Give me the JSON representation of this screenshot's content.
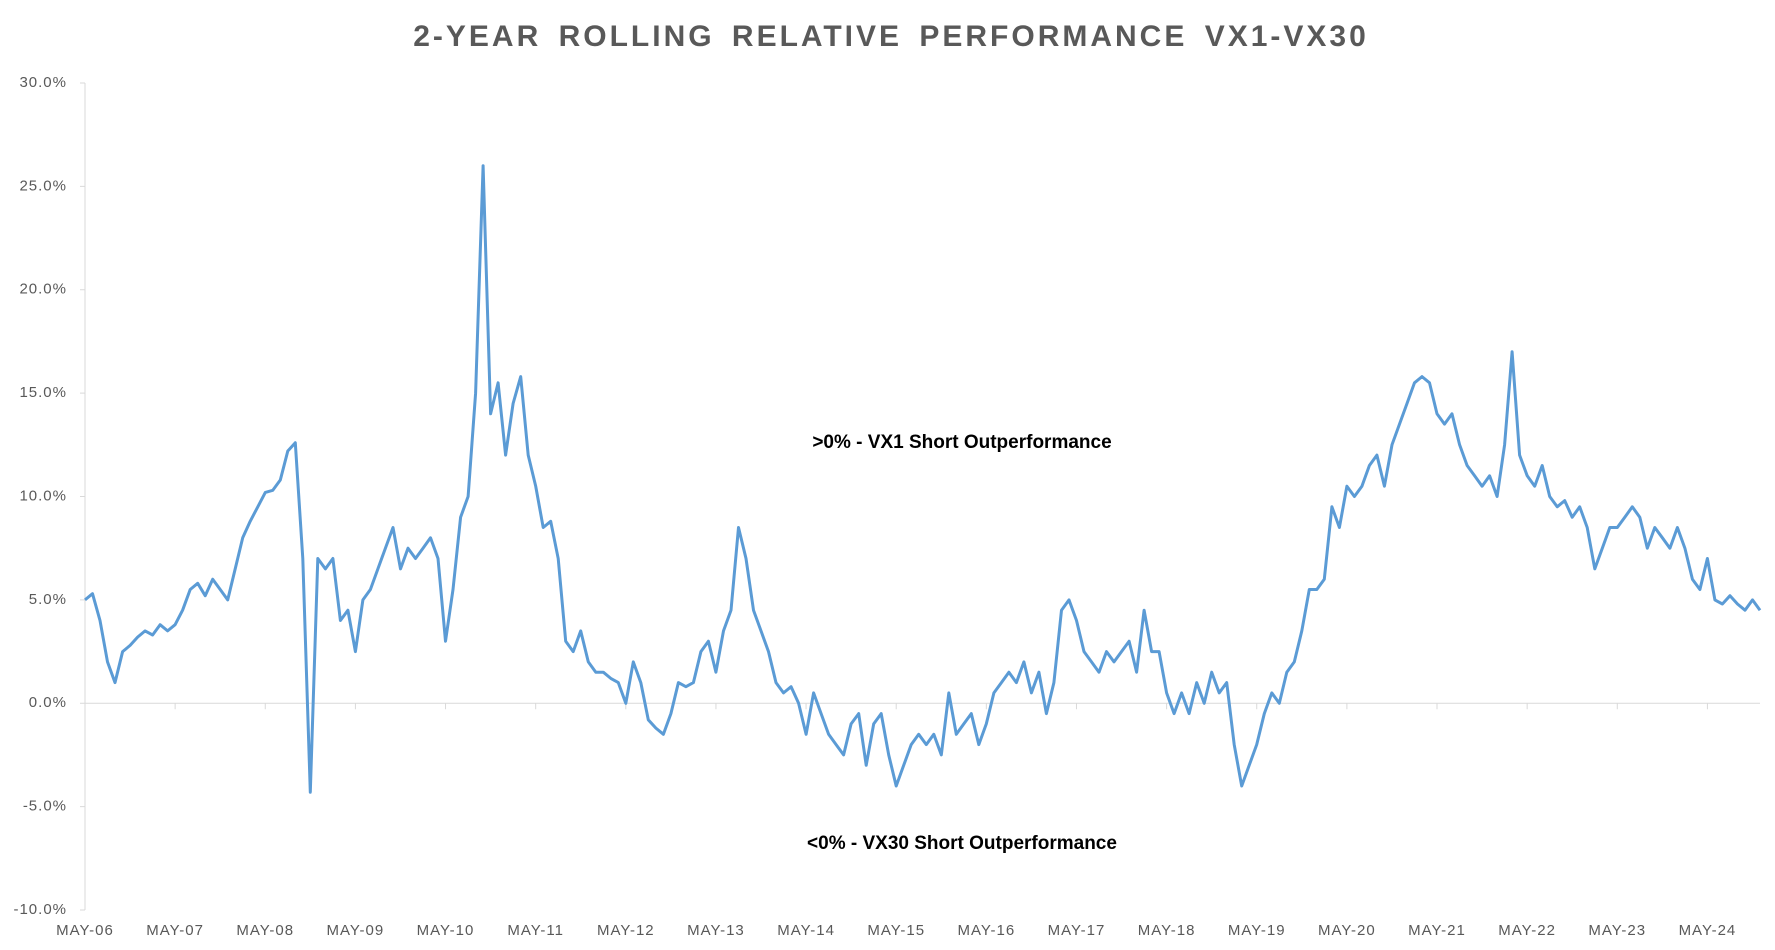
{
  "chart_data": {
    "type": "line",
    "title": "2-YEAR ROLLING RELATIVE PERFORMANCE VX1-VX30",
    "annotations": [
      ">0% - VX1 Short Outperformance",
      "<0% - VX30 Short Outperformance"
    ],
    "color": "#5b9bd5",
    "x": [
      "2006-05",
      "2006-06",
      "2006-07",
      "2006-08",
      "2006-09",
      "2006-10",
      "2006-11",
      "2006-12",
      "2007-01",
      "2007-02",
      "2007-03",
      "2007-04",
      "2007-05",
      "2007-06",
      "2007-07",
      "2007-08",
      "2007-09",
      "2007-10",
      "2007-11",
      "2007-12",
      "2008-01",
      "2008-02",
      "2008-03",
      "2008-04",
      "2008-05",
      "2008-06",
      "2008-07",
      "2008-08",
      "2008-09",
      "2008-10",
      "2008-11",
      "2008-12",
      "2009-01",
      "2009-02",
      "2009-03",
      "2009-04",
      "2009-05",
      "2009-06",
      "2009-07",
      "2009-08",
      "2009-09",
      "2009-10",
      "2009-11",
      "2009-12",
      "2010-01",
      "2010-02",
      "2010-03",
      "2010-04",
      "2010-05",
      "2010-06",
      "2010-07",
      "2010-08",
      "2010-09",
      "2010-10",
      "2010-11",
      "2010-12",
      "2011-01",
      "2011-02",
      "2011-03",
      "2011-04",
      "2011-05",
      "2011-06",
      "2011-07",
      "2011-08",
      "2011-09",
      "2011-10",
      "2011-11",
      "2011-12",
      "2012-01",
      "2012-02",
      "2012-03",
      "2012-04",
      "2012-05",
      "2012-06",
      "2012-07",
      "2012-08",
      "2012-09",
      "2012-10",
      "2012-11",
      "2012-12",
      "2013-01",
      "2013-02",
      "2013-03",
      "2013-04",
      "2013-05",
      "2013-06",
      "2013-07",
      "2013-08",
      "2013-09",
      "2013-10",
      "2013-11",
      "2013-12",
      "2014-01",
      "2014-02",
      "2014-03",
      "2014-04",
      "2014-05",
      "2014-06",
      "2014-07",
      "2014-08",
      "2014-09",
      "2014-10",
      "2014-11",
      "2014-12",
      "2015-01",
      "2015-02",
      "2015-03",
      "2015-04",
      "2015-05",
      "2015-06",
      "2015-07",
      "2015-08",
      "2015-09",
      "2015-10",
      "2015-11",
      "2015-12",
      "2016-01",
      "2016-02",
      "2016-03",
      "2016-04",
      "2016-05",
      "2016-06",
      "2016-07",
      "2016-08",
      "2016-09",
      "2016-10",
      "2016-11",
      "2016-12",
      "2017-01",
      "2017-02",
      "2017-03",
      "2017-04",
      "2017-05",
      "2017-06",
      "2017-07",
      "2017-08",
      "2017-09",
      "2017-10",
      "2017-11",
      "2017-12",
      "2018-01",
      "2018-02",
      "2018-03",
      "2018-04",
      "2018-05",
      "2018-06",
      "2018-07",
      "2018-08",
      "2018-09",
      "2018-10",
      "2018-11",
      "2018-12",
      "2019-01",
      "2019-02",
      "2019-03",
      "2019-04",
      "2019-05",
      "2019-06",
      "2019-07",
      "2019-08",
      "2019-09",
      "2019-10",
      "2019-11",
      "2019-12",
      "2020-01",
      "2020-02",
      "2020-03",
      "2020-04",
      "2020-05",
      "2020-06",
      "2020-07",
      "2020-08",
      "2020-09",
      "2020-10",
      "2020-11",
      "2020-12",
      "2021-01",
      "2021-02",
      "2021-03",
      "2021-04",
      "2021-05",
      "2021-06",
      "2021-07",
      "2021-08",
      "2021-09",
      "2021-10",
      "2021-11",
      "2021-12",
      "2022-01",
      "2022-02",
      "2022-03",
      "2022-04",
      "2022-05",
      "2022-06",
      "2022-07",
      "2022-08",
      "2022-09",
      "2022-10",
      "2022-11",
      "2022-12",
      "2023-01",
      "2023-02",
      "2023-03",
      "2023-04",
      "2023-05",
      "2023-06",
      "2023-07",
      "2023-08",
      "2023-09",
      "2023-10",
      "2023-11",
      "2023-12",
      "2024-01",
      "2024-02",
      "2024-03",
      "2024-04",
      "2024-05",
      "2024-06",
      "2024-07",
      "2024-08",
      "2024-09",
      "2024-10",
      "2024-11",
      "2024-12"
    ],
    "values": [
      5.0,
      5.3,
      4.0,
      2.0,
      1.0,
      2.5,
      2.8,
      3.2,
      3.5,
      3.3,
      3.8,
      3.5,
      3.8,
      4.5,
      5.5,
      5.8,
      5.2,
      6.0,
      5.5,
      5.0,
      6.5,
      8.0,
      8.8,
      9.5,
      10.2,
      10.3,
      10.8,
      12.2,
      12.6,
      7.0,
      -4.3,
      7.0,
      6.5,
      7.0,
      4.0,
      4.5,
      2.5,
      5.0,
      5.5,
      6.5,
      7.5,
      8.5,
      6.5,
      7.5,
      7.0,
      7.5,
      8.0,
      7.0,
      3.0,
      5.5,
      9.0,
      10.0,
      15.0,
      26.0,
      14.0,
      15.5,
      12.0,
      14.5,
      15.8,
      12.0,
      10.5,
      8.5,
      8.8,
      7.0,
      3.0,
      2.5,
      3.5,
      2.0,
      1.5,
      1.5,
      1.2,
      1.0,
      0.0,
      2.0,
      1.0,
      -0.8,
      -1.2,
      -1.5,
      -0.5,
      1.0,
      0.8,
      1.0,
      2.5,
      3.0,
      1.5,
      3.5,
      4.5,
      8.5,
      7.0,
      4.5,
      3.5,
      2.5,
      1.0,
      0.5,
      0.8,
      0.0,
      -1.5,
      0.5,
      -0.5,
      -1.5,
      -2.0,
      -2.5,
      -1.0,
      -0.5,
      -3.0,
      -1.0,
      -0.5,
      -2.5,
      -4.0,
      -3.0,
      -2.0,
      -1.5,
      -2.0,
      -1.5,
      -2.5,
      0.5,
      -1.5,
      -1.0,
      -0.5,
      -2.0,
      -1.0,
      0.5,
      1.0,
      1.5,
      1.0,
      2.0,
      0.5,
      1.5,
      -0.5,
      1.0,
      4.5,
      5.0,
      4.0,
      2.5,
      2.0,
      1.5,
      2.5,
      2.0,
      2.5,
      3.0,
      1.5,
      4.5,
      2.5,
      2.5,
      0.5,
      -0.5,
      0.5,
      -0.5,
      1.0,
      0.0,
      1.5,
      0.5,
      1.0,
      -2.0,
      -4.0,
      -3.0,
      -2.0,
      -0.5,
      0.5,
      0.0,
      1.5,
      2.0,
      3.5,
      5.5,
      5.5,
      6.0,
      9.5,
      8.5,
      10.5,
      10.0,
      10.5,
      11.5,
      12.0,
      10.5,
      12.5,
      13.5,
      14.5,
      15.5,
      15.8,
      15.5,
      14.0,
      13.5,
      14.0,
      12.5,
      11.5,
      11.0,
      10.5,
      11.0,
      10.0,
      12.5,
      17.0,
      12.0,
      11.0,
      10.5,
      11.5,
      10.0,
      9.5,
      9.8,
      9.0,
      9.5,
      8.5,
      6.5,
      7.5,
      8.5,
      8.5,
      9.0,
      9.5,
      9.0,
      7.5,
      8.5,
      8.0,
      7.5,
      8.5,
      7.5,
      6.0,
      5.5,
      7.0,
      5.0,
      4.8,
      5.2,
      4.8,
      4.5,
      5.0,
      4.5
    ],
    "xlim": [
      "2006-05",
      "2024-12"
    ],
    "xticks": [
      {
        "value": "2006-05",
        "label": "MAY-06"
      },
      {
        "value": "2007-05",
        "label": "MAY-07"
      },
      {
        "value": "2008-05",
        "label": "MAY-08"
      },
      {
        "value": "2009-05",
        "label": "MAY-09"
      },
      {
        "value": "2010-05",
        "label": "MAY-10"
      },
      {
        "value": "2011-05",
        "label": "MAY-11"
      },
      {
        "value": "2012-05",
        "label": "MAY-12"
      },
      {
        "value": "2013-05",
        "label": "MAY-13"
      },
      {
        "value": "2014-05",
        "label": "MAY-14"
      },
      {
        "value": "2015-05",
        "label": "MAY-15"
      },
      {
        "value": "2016-05",
        "label": "MAY-16"
      },
      {
        "value": "2017-05",
        "label": "MAY-17"
      },
      {
        "value": "2018-05",
        "label": "MAY-18"
      },
      {
        "value": "2019-05",
        "label": "MAY-19"
      },
      {
        "value": "2020-05",
        "label": "MAY-20"
      },
      {
        "value": "2021-05",
        "label": "MAY-21"
      },
      {
        "value": "2022-05",
        "label": "MAY-22"
      },
      {
        "value": "2023-05",
        "label": "MAY-23"
      },
      {
        "value": "2024-05",
        "label": "MAY-24"
      }
    ],
    "ylim": [
      -10,
      30
    ],
    "yticks": [
      {
        "value": -10,
        "label": "-10.0%"
      },
      {
        "value": -5,
        "label": "-5.0%"
      },
      {
        "value": 0,
        "label": "0.0%"
      },
      {
        "value": 5,
        "label": "5.0%"
      },
      {
        "value": 10,
        "label": "10.0%"
      },
      {
        "value": 15,
        "label": "15.0%"
      },
      {
        "value": 20,
        "label": "20.0%"
      },
      {
        "value": 25,
        "label": "25.0%"
      },
      {
        "value": 30,
        "label": "30.0%"
      }
    ],
    "grid": false
  }
}
